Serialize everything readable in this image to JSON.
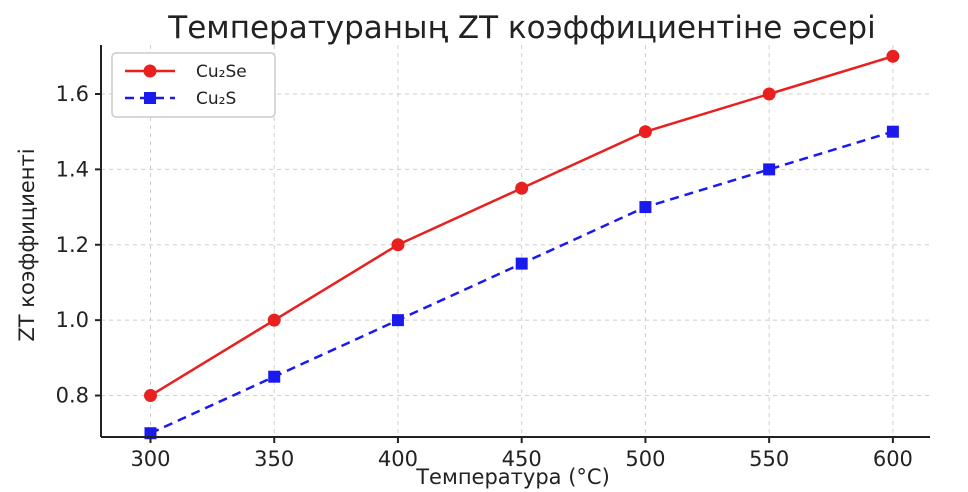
{
  "chart_data": {
    "type": "line",
    "title": "Температураның ZT коэффициентіне әсері",
    "xlabel": "Температура (°C)",
    "ylabel": "ZT коэффициенті",
    "x": [
      300,
      350,
      400,
      450,
      500,
      550,
      600
    ],
    "xlim": [
      280,
      615
    ],
    "ylim": [
      0.69,
      1.73
    ],
    "xticks": [
      300,
      350,
      400,
      450,
      500,
      550,
      600
    ],
    "yticks": [
      0.8,
      1.0,
      1.2,
      1.4,
      1.6
    ],
    "grid": true,
    "legend_position": "top-left",
    "series": [
      {
        "name": "Cu₂Se",
        "values": [
          0.8,
          1.0,
          1.2,
          1.35,
          1.5,
          1.6,
          1.7
        ],
        "color": "#e8201f",
        "line_style": "solid",
        "marker": "circle"
      },
      {
        "name": "Cu₂S",
        "values": [
          0.7,
          0.85,
          1.0,
          1.15,
          1.3,
          1.4,
          1.5
        ],
        "color": "#1a1aee",
        "line_style": "dashed",
        "marker": "square"
      }
    ]
  }
}
